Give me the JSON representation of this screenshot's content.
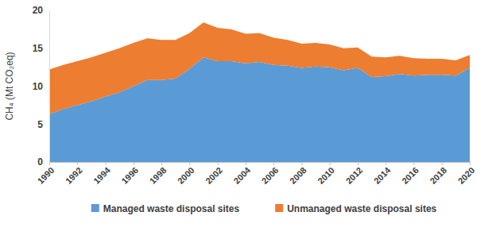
{
  "chart_data": {
    "type": "area",
    "stacked": true,
    "y_label": "CH₄ (Mt CO₂eq)",
    "x": [
      1990,
      1991,
      1992,
      1993,
      1994,
      1995,
      1996,
      1997,
      1998,
      1999,
      2000,
      2001,
      2002,
      2003,
      2004,
      2005,
      2006,
      2007,
      2008,
      2009,
      2010,
      2011,
      2012,
      2013,
      2014,
      2015,
      2016,
      2017,
      2018,
      2019,
      2020
    ],
    "series": [
      {
        "name": "Managed waste disposal sites",
        "color": "#5b9bd5",
        "values": [
          6.3,
          7.0,
          7.5,
          8.0,
          8.6,
          9.2,
          10.0,
          10.8,
          10.8,
          11.0,
          12.3,
          13.8,
          13.3,
          13.3,
          13.0,
          13.2,
          12.8,
          12.7,
          12.4,
          12.6,
          12.5,
          12.1,
          12.4,
          11.2,
          11.3,
          11.6,
          11.4,
          11.5,
          11.5,
          11.4,
          12.4
        ]
      },
      {
        "name": "Unmanaged waste disposal sites",
        "color": "#ed7d31",
        "values": [
          5.9,
          5.8,
          5.8,
          5.8,
          5.8,
          5.8,
          5.7,
          5.5,
          5.3,
          5.1,
          4.7,
          4.6,
          4.4,
          4.2,
          3.9,
          3.8,
          3.6,
          3.4,
          3.2,
          3.1,
          3.0,
          2.9,
          2.7,
          2.7,
          2.5,
          2.4,
          2.3,
          2.1,
          2.1,
          2.0,
          1.7
        ]
      }
    ],
    "xlim": [
      1990,
      2020
    ],
    "xticks": [
      1990,
      1992,
      1994,
      1996,
      1998,
      2000,
      2002,
      2004,
      2006,
      2008,
      2010,
      2012,
      2014,
      2016,
      2018,
      2020
    ],
    "ylim": [
      0,
      20
    ],
    "yticks": [
      0,
      5,
      10,
      15,
      20
    ],
    "grid": false,
    "legend": "bottom"
  }
}
